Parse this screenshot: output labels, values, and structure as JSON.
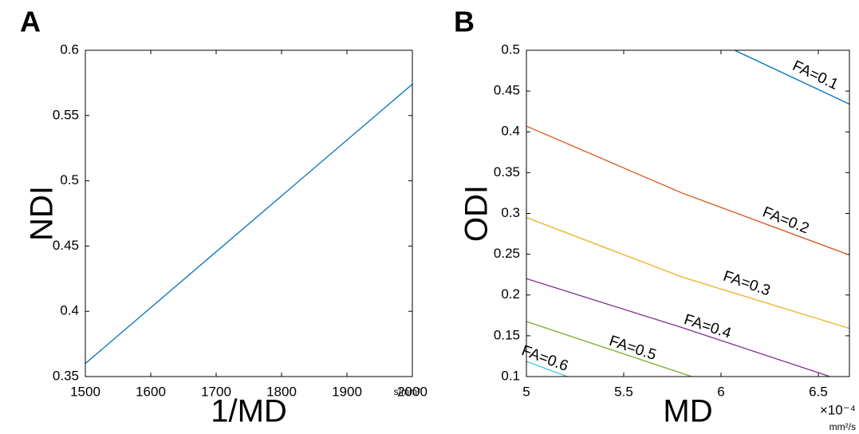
{
  "chart_data": [
    {
      "type": "line",
      "panel": "A",
      "xlabel": "1/MD",
      "x_unit": "s/mm²",
      "ylabel": "NDI",
      "xlim": [
        1500,
        2000
      ],
      "xticks": [
        1500,
        1600,
        1700,
        1800,
        1900,
        2000
      ],
      "ylim": [
        0.35,
        0.6
      ],
      "yticks": [
        0.35,
        0.4,
        0.45,
        0.5,
        0.55,
        0.6
      ],
      "series": [
        {
          "color": "#0072bd",
          "x": [
            1500,
            2000
          ],
          "values": [
            0.36,
            0.574
          ]
        }
      ]
    },
    {
      "type": "line",
      "panel": "B",
      "xlabel": "MD",
      "x_multiplier": "×10⁻⁴",
      "x_unit": "mm²/s",
      "ylabel": "ODI",
      "xlim": [
        5,
        6.66
      ],
      "xticks": [
        5,
        5.5,
        6,
        6.5
      ],
      "ylim": [
        0.1,
        0.5
      ],
      "yticks": [
        0.1,
        0.15,
        0.2,
        0.25,
        0.3,
        0.35,
        0.4,
        0.45,
        0.5
      ],
      "series": [
        {
          "name": "FA=0.1",
          "color": "#0072bd",
          "x": [
            6.07,
            6.66
          ],
          "values": [
            0.5,
            0.434
          ]
        },
        {
          "name": "FA=0.2",
          "color": "#d95319",
          "x": [
            5,
            5.8,
            6.66
          ],
          "values": [
            0.407,
            0.325,
            0.249
          ]
        },
        {
          "name": "FA=0.3",
          "color": "#edb120",
          "x": [
            5,
            5.8,
            6.66
          ],
          "values": [
            0.295,
            0.222,
            0.159
          ]
        },
        {
          "name": "FA=0.4",
          "color": "#7e2f8e",
          "x": [
            5,
            5.8,
            6.56
          ],
          "values": [
            0.22,
            0.16,
            0.1
          ]
        },
        {
          "name": "FA=0.5",
          "color": "#77ac30",
          "x": [
            5,
            5.85
          ],
          "values": [
            0.1675,
            0.1
          ]
        },
        {
          "name": "FA=0.6",
          "color": "#4dbeee",
          "x": [
            5,
            5.21
          ],
          "values": [
            0.1186,
            0.1
          ]
        }
      ]
    }
  ]
}
